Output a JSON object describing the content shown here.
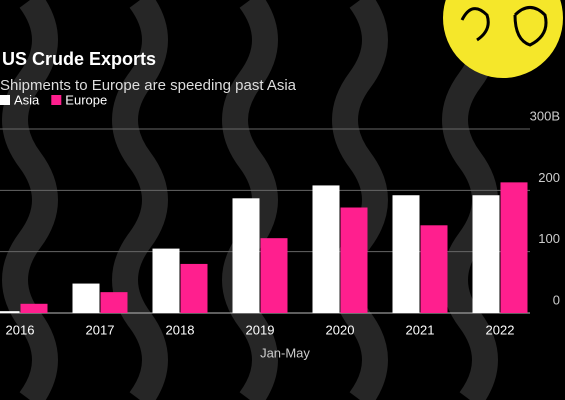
{
  "chart_data": {
    "type": "bar",
    "title": "US Crude Exports",
    "subtitle": "Shipments to Europe are speeding past Asia",
    "x_label": "Jan-May",
    "categories": [
      "2016",
      "2017",
      "2018",
      "2019",
      "2020",
      "2021",
      "2022"
    ],
    "series": [
      {
        "name": "Asia",
        "color": "#ffffff",
        "values": [
          3,
          48,
          105,
          187,
          208,
          192,
          192
        ]
      },
      {
        "name": "Europe",
        "color": "#ff1f8e",
        "values": [
          15,
          34,
          80,
          122,
          172,
          143,
          213
        ]
      }
    ],
    "ylim": [
      0,
      300
    ],
    "yticks": [
      0,
      100,
      200,
      {
        "value": 300,
        "label": "300B"
      }
    ],
    "grid": true
  }
}
